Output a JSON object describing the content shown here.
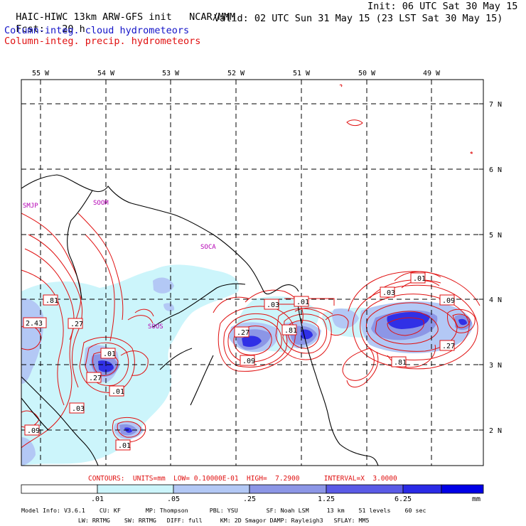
{
  "header": {
    "model_title": "HAIC-HIWC 13km ARW-GFS init",
    "org": "NCAR/MMM",
    "init": "Init: 06 UTC Sat 30 May 15",
    "fcst_label": "Fcst:",
    "fcst_value": "20 h",
    "valid": "Valid: 02 UTC Sun 31 May 15 (23 LST Sat 30 May 15)",
    "field1": "Column-integ. cloud hydrometeors",
    "field2": "Column-integ. precip. hydrometeors",
    "field1_color": "#1414c8",
    "field2_color": "#e01010"
  },
  "map": {
    "lon_labels": [
      "55 W",
      "54 W",
      "53 W",
      "52 W",
      "51 W",
      "50 W",
      "49 W"
    ],
    "lat_labels": [
      "7 N",
      "6 N",
      "5 N",
      "4 N",
      "3 N",
      "2 N"
    ],
    "stations": [
      "SMJP",
      "SOCA",
      "SOOM",
      "SOOS"
    ],
    "contour_labels": [
      ".81",
      "2.43",
      ".27",
      ".01",
      ".27",
      ".01",
      ".03",
      ".09",
      ".01",
      ".03",
      ".01",
      ".27",
      ".81",
      ".09",
      ".01",
      ".03",
      ".09",
      ".27",
      ".81",
      ".09",
      ".01"
    ],
    "shade_colors": [
      "#ffffff",
      "#ccf5fb",
      "#b3c8f5",
      "#8c96e6",
      "#5a5ae6",
      "#2a2ae6",
      "#0000e6"
    ],
    "contour_color": "#e01010",
    "station_color": "#b400b4"
  },
  "contour_info": "CONTOURS:  UNITS=mm  LOW= 0.10000E-01  HIGH=  7.2900      INTERVAL=X  3.0000",
  "colorbar": {
    "ticks": [
      ".01",
      ".05",
      ".25",
      "1.25",
      "6.25"
    ],
    "units": "mm",
    "colors": [
      "#ffffff",
      "#ccf5fb",
      "#b3c8f5",
      "#8c96e6",
      "#5a5ae6",
      "#2a2ae6",
      "#0000e6"
    ]
  },
  "model_info": {
    "line1": "Model Info: V3.6.1    CU: KF       MP: Thompson      PBL: YSU        SF: Noah LSM     13 km    51 levels    60 sec",
    "line2": "                LW: RRTMG    SW: RRTMG   DIFF: full     KM: 2D Smagor DAMP: Rayleigh3   SFLAY: MM5"
  }
}
